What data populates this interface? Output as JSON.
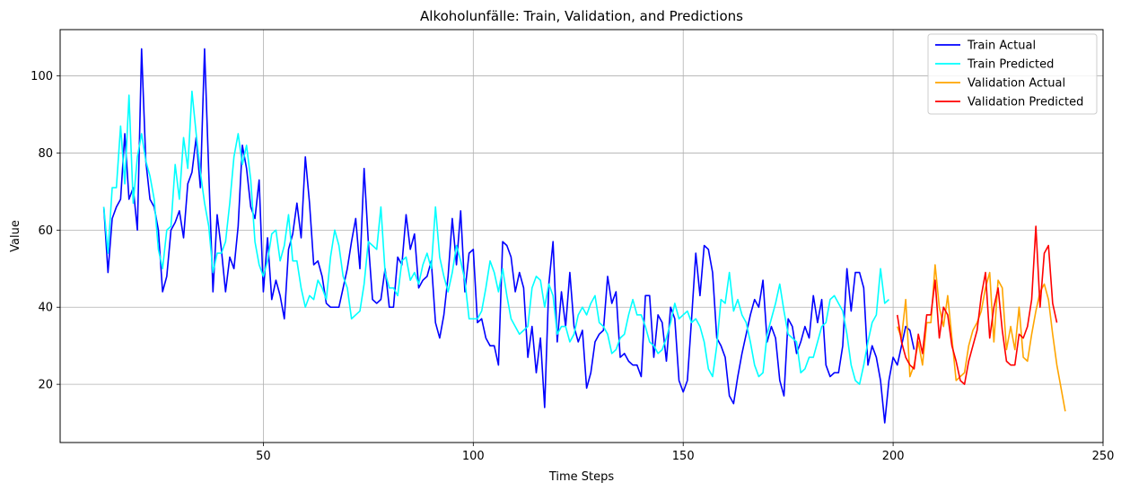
{
  "chart_data": {
    "type": "line",
    "title": "Alkoholunfälle: Train, Validation, and Predictions",
    "xlabel": "Time Steps",
    "ylabel": "Value",
    "xlim": [
      1.6,
      250
    ],
    "ylim": [
      4.9,
      112
    ],
    "xticks": [
      50,
      100,
      150,
      200,
      250
    ],
    "yticks": [
      20,
      40,
      60,
      80,
      100
    ],
    "grid": true,
    "legend_position": "top-right",
    "series": [
      {
        "name": "Train Actual",
        "color": "#0000ff",
        "x_start": 12,
        "values": [
          66,
          49,
          63,
          66,
          68,
          85,
          68,
          71,
          60,
          107,
          78,
          68,
          66,
          60,
          44,
          48,
          60,
          62,
          65,
          58,
          72,
          75,
          84,
          71,
          107,
          75,
          44,
          64,
          55,
          44,
          53,
          50,
          61,
          82,
          76,
          66,
          63,
          73,
          44,
          58,
          42,
          47,
          43,
          37,
          55,
          59,
          67,
          58,
          79,
          67,
          51,
          52,
          48,
          41,
          40,
          40,
          40,
          45,
          50,
          57,
          63,
          50,
          76,
          57,
          42,
          41,
          42,
          50,
          40,
          40,
          53,
          51,
          64,
          55,
          59,
          45,
          47,
          48,
          52,
          36,
          32,
          38,
          48,
          63,
          51,
          65,
          44,
          54,
          55,
          36,
          37,
          32,
          30,
          30,
          25,
          57,
          56,
          53,
          44,
          49,
          45,
          27,
          35,
          23,
          32,
          14,
          46,
          57,
          31,
          44,
          35,
          49,
          35,
          31,
          34,
          19,
          23,
          31,
          33,
          34,
          48,
          41,
          44,
          27,
          28,
          26,
          25,
          25,
          22,
          43,
          43,
          27,
          38,
          36,
          26,
          40,
          37,
          21,
          18,
          21,
          37,
          54,
          43,
          56,
          55,
          49,
          32,
          30,
          27,
          17,
          15,
          22,
          28,
          33,
          38,
          42,
          40,
          47,
          31,
          35,
          32,
          21,
          17,
          37,
          35,
          28,
          31,
          35,
          32,
          43,
          36,
          42,
          25,
          22,
          23,
          23,
          30,
          50,
          39,
          49,
          49,
          45,
          25,
          30,
          27,
          21,
          10,
          21,
          27,
          25,
          30,
          35,
          34,
          29
        ]
      },
      {
        "name": "Train Predicted",
        "color": "#00ffff",
        "x_start": 12,
        "values": [
          66,
          54,
          71,
          71,
          87,
          72,
          95,
          67,
          79,
          85,
          78,
          74,
          68,
          55,
          50,
          60,
          61,
          77,
          68,
          84,
          76,
          96,
          85,
          75,
          67,
          61,
          49,
          54,
          54,
          57,
          67,
          79,
          85,
          77,
          82,
          73,
          57,
          51,
          48,
          52,
          59,
          60,
          52,
          56,
          64,
          52,
          52,
          45,
          40,
          43,
          42,
          47,
          45,
          42,
          53,
          60,
          56,
          48,
          45,
          37,
          38,
          39,
          46,
          57,
          56,
          55,
          66,
          49,
          45,
          45,
          43,
          52,
          53,
          47,
          49,
          46,
          51,
          54,
          50,
          66,
          53,
          48,
          44,
          49,
          56,
          52,
          47,
          37,
          37,
          37,
          39,
          45,
          52,
          49,
          44,
          50,
          43,
          37,
          35,
          33,
          34,
          35,
          45,
          48,
          47,
          40,
          46,
          43,
          33,
          35,
          35,
          31,
          33,
          38,
          40,
          38,
          41,
          43,
          36,
          35,
          33,
          28,
          29,
          32,
          33,
          38,
          42,
          38,
          38,
          35,
          31,
          30,
          28,
          29,
          32,
          36,
          41,
          37,
          38,
          39,
          36,
          37,
          35,
          31,
          24,
          22,
          30,
          42,
          41,
          49,
          39,
          42,
          38,
          36,
          31,
          25,
          22,
          23,
          33,
          37,
          41,
          46,
          39,
          33,
          32,
          31,
          23,
          24,
          27,
          27,
          31,
          35,
          36,
          42,
          43,
          41,
          39,
          33,
          25,
          21,
          20,
          25,
          31,
          36,
          38,
          50,
          41,
          42
        ]
      },
      {
        "name": "Validation Actual",
        "color": "#ffa500",
        "x_start": 201,
        "values": [
          35,
          32,
          42,
          22,
          25,
          31,
          25,
          36,
          36,
          51,
          40,
          35,
          43,
          32,
          21,
          22,
          23,
          30,
          34,
          36,
          39,
          45,
          49,
          31,
          47,
          45,
          29,
          35,
          29,
          40,
          27,
          26,
          33,
          39,
          44,
          46,
          42,
          33,
          25,
          19,
          13
        ]
      },
      {
        "name": "Validation Predicted",
        "color": "#ff0000",
        "x_start": 201,
        "values": [
          38,
          31,
          27,
          25,
          24,
          33,
          28,
          38,
          38,
          47,
          32,
          40,
          38,
          30,
          26,
          21,
          20,
          26,
          30,
          34,
          43,
          49,
          32,
          40,
          45,
          34,
          26,
          25,
          25,
          33,
          32,
          35,
          42,
          61,
          40,
          54,
          56,
          41,
          36
        ]
      }
    ]
  }
}
